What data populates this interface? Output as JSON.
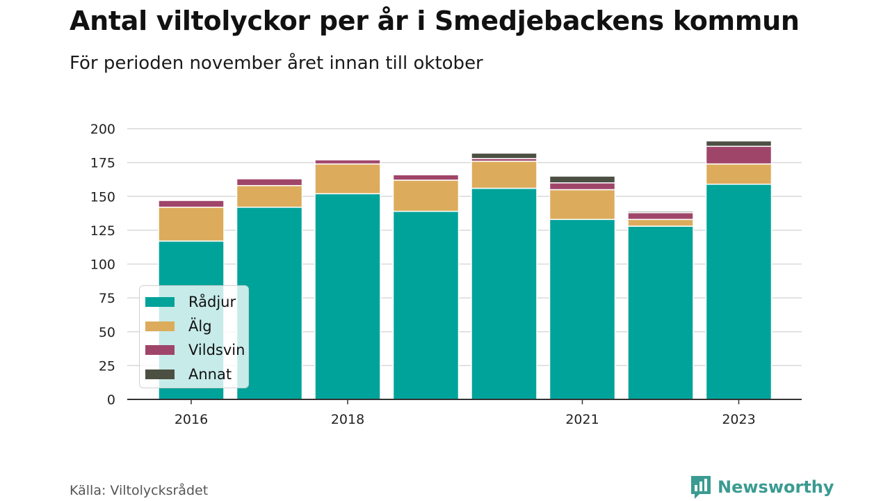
{
  "title": "Antal viltolyckor per år i Smedjebackens kommun",
  "subtitle": "För perioden november året innan till oktober",
  "source": "Källa: Viltolycksrådet",
  "brand": "Newsworthy",
  "chart_data": {
    "type": "bar",
    "stacked": true,
    "categories": [
      "2016",
      "2017",
      "2018",
      "2019",
      "2020",
      "2021",
      "2022",
      "2023"
    ],
    "x_tick_labels": [
      "2016",
      "",
      "2018",
      "",
      "",
      "2021",
      "",
      "2023"
    ],
    "y_ticks": [
      0,
      25,
      50,
      75,
      100,
      125,
      150,
      175,
      200
    ],
    "ylim": [
      0,
      200
    ],
    "grid": true,
    "legend_position": "lower-left",
    "series": [
      {
        "name": "Rådjur",
        "color": "#00a39a",
        "values": [
          117,
          142,
          152,
          139,
          156,
          133,
          128,
          159
        ]
      },
      {
        "name": "Älg",
        "color": "#dcac5c",
        "values": [
          25,
          16,
          22,
          23,
          20,
          22,
          5,
          15
        ]
      },
      {
        "name": "Vildsvin",
        "color": "#a0456a",
        "values": [
          5,
          5,
          3,
          4,
          2,
          5,
          5,
          13
        ]
      },
      {
        "name": "Annat",
        "color": "#4c5043",
        "values": [
          0,
          0,
          0,
          0,
          4,
          5,
          1,
          4
        ]
      }
    ]
  }
}
